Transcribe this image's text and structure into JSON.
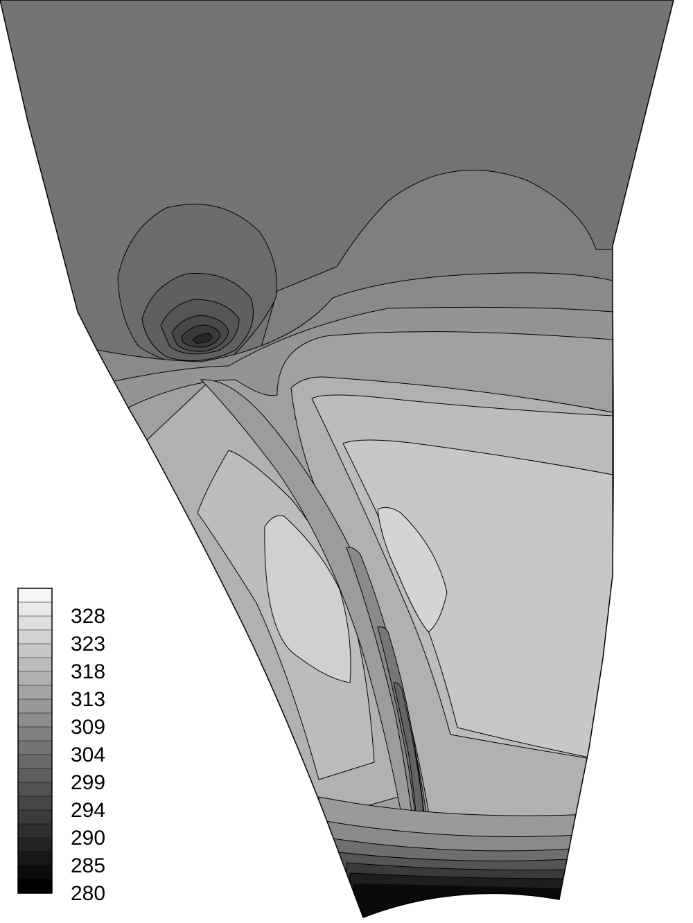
{
  "figure": {
    "type": "contour",
    "colormap": "grayscale"
  },
  "legend": {
    "labels": [
      "328",
      "323",
      "318",
      "313",
      "309",
      "304",
      "299",
      "294",
      "290",
      "285",
      "280"
    ],
    "levels": 22,
    "min": 280,
    "max": 330,
    "color_low": "#000000",
    "color_high": "#f6f6f6"
  }
}
